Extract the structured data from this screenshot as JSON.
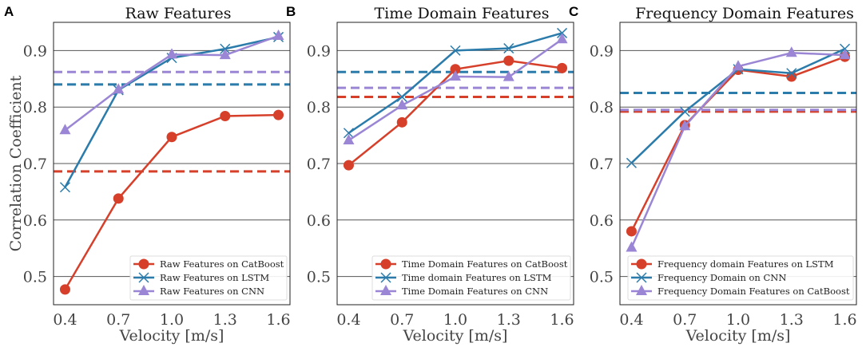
{
  "colors": {
    "red": "#d6402b",
    "blue": "#2b7bab",
    "purple": "#9a86d4"
  },
  "chart_data": [
    {
      "panel": "A",
      "type": "line",
      "title": "Raw Features",
      "xlabel": "Velocity [m/s]",
      "ylabel": "Correlation Coefficient",
      "x": [
        0.4,
        0.7,
        1.0,
        1.3,
        1.6
      ],
      "xticks": [
        "0.4",
        "0.7",
        "1.0",
        "1.3",
        "1.6"
      ],
      "yticks": [
        "0.5",
        "0.6",
        "0.7",
        "0.8",
        "0.9"
      ],
      "xlim": [
        0.335,
        1.665
      ],
      "ylim": [
        0.45,
        0.95
      ],
      "grid": "horizontal",
      "legend": "lower-right",
      "series": [
        {
          "name": "Raw Features on CatBoost",
          "color": "red",
          "marker": "circle",
          "values": [
            0.477,
            0.638,
            0.747,
            0.784,
            0.786
          ],
          "baseline": 0.686
        },
        {
          "name": "Raw Features on LSTM",
          "color": "blue",
          "marker": "x",
          "values": [
            0.658,
            0.83,
            0.887,
            0.903,
            0.924
          ],
          "baseline": 0.84
        },
        {
          "name": "Raw Features on CNN",
          "color": "purple",
          "marker": "triangle",
          "values": [
            0.759,
            0.831,
            0.893,
            0.892,
            0.926
          ],
          "baseline": 0.862
        }
      ]
    },
    {
      "panel": "B",
      "type": "line",
      "title": "Time Domain Features",
      "xlabel": "Velocity [m/s]",
      "ylabel": "",
      "x": [
        0.4,
        0.7,
        1.0,
        1.3,
        1.6
      ],
      "xticks": [
        "0.4",
        "0.7",
        "1.0",
        "1.3",
        "1.6"
      ],
      "yticks": [
        "0.5",
        "0.6",
        "0.7",
        "0.8",
        "0.9"
      ],
      "xlim": [
        0.335,
        1.665
      ],
      "ylim": [
        0.45,
        0.95
      ],
      "grid": "horizontal",
      "legend": "lower-right",
      "series": [
        {
          "name": "Time Domain Features on CatBoost",
          "color": "red",
          "marker": "circle",
          "values": [
            0.697,
            0.773,
            0.867,
            0.882,
            0.869
          ],
          "baseline": 0.818
        },
        {
          "name": "Time domain Features on LSTM",
          "color": "blue",
          "marker": "x",
          "values": [
            0.754,
            0.818,
            0.9,
            0.904,
            0.931
          ],
          "baseline": 0.862
        },
        {
          "name": "Time Domain Features on CNN",
          "color": "purple",
          "marker": "triangle",
          "values": [
            0.741,
            0.803,
            0.854,
            0.853,
            0.92
          ],
          "baseline": 0.834
        }
      ]
    },
    {
      "panel": "C",
      "type": "line",
      "title": "Frequency Domain Features",
      "xlabel": "Velocity [m/s]",
      "ylabel": "",
      "x": [
        0.4,
        0.7,
        1.0,
        1.3,
        1.6
      ],
      "xticks": [
        "0.4",
        "0.7",
        "1.0",
        "1.3",
        "1.6"
      ],
      "yticks": [
        "0.5",
        "0.6",
        "0.7",
        "0.8",
        "0.9"
      ],
      "xlim": [
        0.335,
        1.665
      ],
      "ylim": [
        0.45,
        0.95
      ],
      "grid": "horizontal",
      "legend": "lower-right",
      "series": [
        {
          "name": "Frequency domain Features on LSTM",
          "color": "red",
          "marker": "circle",
          "values": [
            0.58,
            0.768,
            0.866,
            0.854,
            0.889
          ],
          "baseline": 0.792
        },
        {
          "name": "Frequency Domain on CNN",
          "color": "blue",
          "marker": "x",
          "values": [
            0.701,
            0.792,
            0.867,
            0.86,
            0.903
          ],
          "baseline": 0.825
        },
        {
          "name": "Frequency Domain Features on CatBoost",
          "color": "purple",
          "marker": "triangle",
          "values": [
            0.551,
            0.766,
            0.872,
            0.896,
            0.892
          ],
          "baseline": 0.795
        }
      ]
    }
  ]
}
